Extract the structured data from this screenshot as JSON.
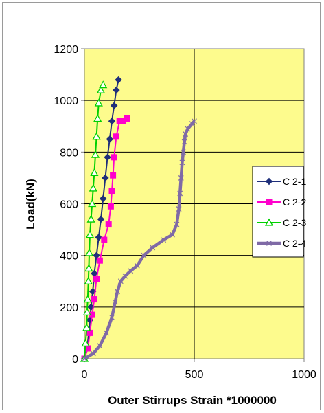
{
  "chart_data": {
    "type": "line",
    "title": "",
    "xlabel": "Outer Stirrups Strain *1000000",
    "ylabel": "Load(kN)",
    "xlim": [
      0,
      1000
    ],
    "ylim": [
      0,
      1200
    ],
    "x_ticks": [
      "0",
      "500",
      "1000"
    ],
    "y_ticks": [
      "0",
      "200",
      "400",
      "600",
      "800",
      "1000",
      "1200"
    ],
    "grid": true,
    "legend_position": "right",
    "plot_background": "#fdfb8d",
    "series": [
      {
        "name": "C 2-1",
        "color": "#1f2f7a",
        "marker": "diamond",
        "x": [
          0,
          12,
          20,
          25,
          30,
          38,
          45,
          55,
          65,
          75,
          85,
          95,
          105,
          115,
          125,
          135,
          145,
          155
        ],
        "y": [
          0,
          40,
          100,
          150,
          200,
          260,
          330,
          400,
          470,
          540,
          620,
          700,
          780,
          850,
          920,
          980,
          1040,
          1080
        ]
      },
      {
        "name": "C 2-2",
        "color": "#ff00cc",
        "marker": "square",
        "x": [
          0,
          15,
          25,
          35,
          45,
          55,
          70,
          90,
          110,
          120,
          125,
          130,
          135,
          145,
          160,
          175,
          195
        ],
        "y": [
          0,
          40,
          100,
          170,
          230,
          310,
          380,
          460,
          520,
          590,
          650,
          710,
          780,
          860,
          920,
          920,
          930
        ]
      },
      {
        "name": "C 2-3",
        "color": "#00d000",
        "marker": "triangle",
        "x": [
          0,
          5,
          10,
          12,
          15,
          18,
          20,
          22,
          25,
          30,
          35,
          40,
          45,
          50,
          55,
          60,
          65,
          75,
          85
        ],
        "y": [
          0,
          60,
          120,
          180,
          230,
          300,
          350,
          410,
          480,
          540,
          600,
          660,
          720,
          790,
          860,
          930,
          990,
          1040,
          1060
        ]
      },
      {
        "name": "C 2-4",
        "color": "#7f6aa6",
        "marker": "x",
        "x": [
          0,
          40,
          70,
          100,
          125,
          140,
          150,
          165,
          185,
          210,
          240,
          270,
          310,
          360,
          400,
          420,
          430,
          435,
          440,
          445,
          450,
          455,
          460,
          470,
          490,
          500
        ],
        "y": [
          0,
          20,
          50,
          100,
          160,
          220,
          260,
          300,
          320,
          340,
          360,
          400,
          430,
          460,
          480,
          520,
          580,
          640,
          700,
          760,
          800,
          840,
          870,
          890,
          910,
          920
        ]
      }
    ]
  }
}
